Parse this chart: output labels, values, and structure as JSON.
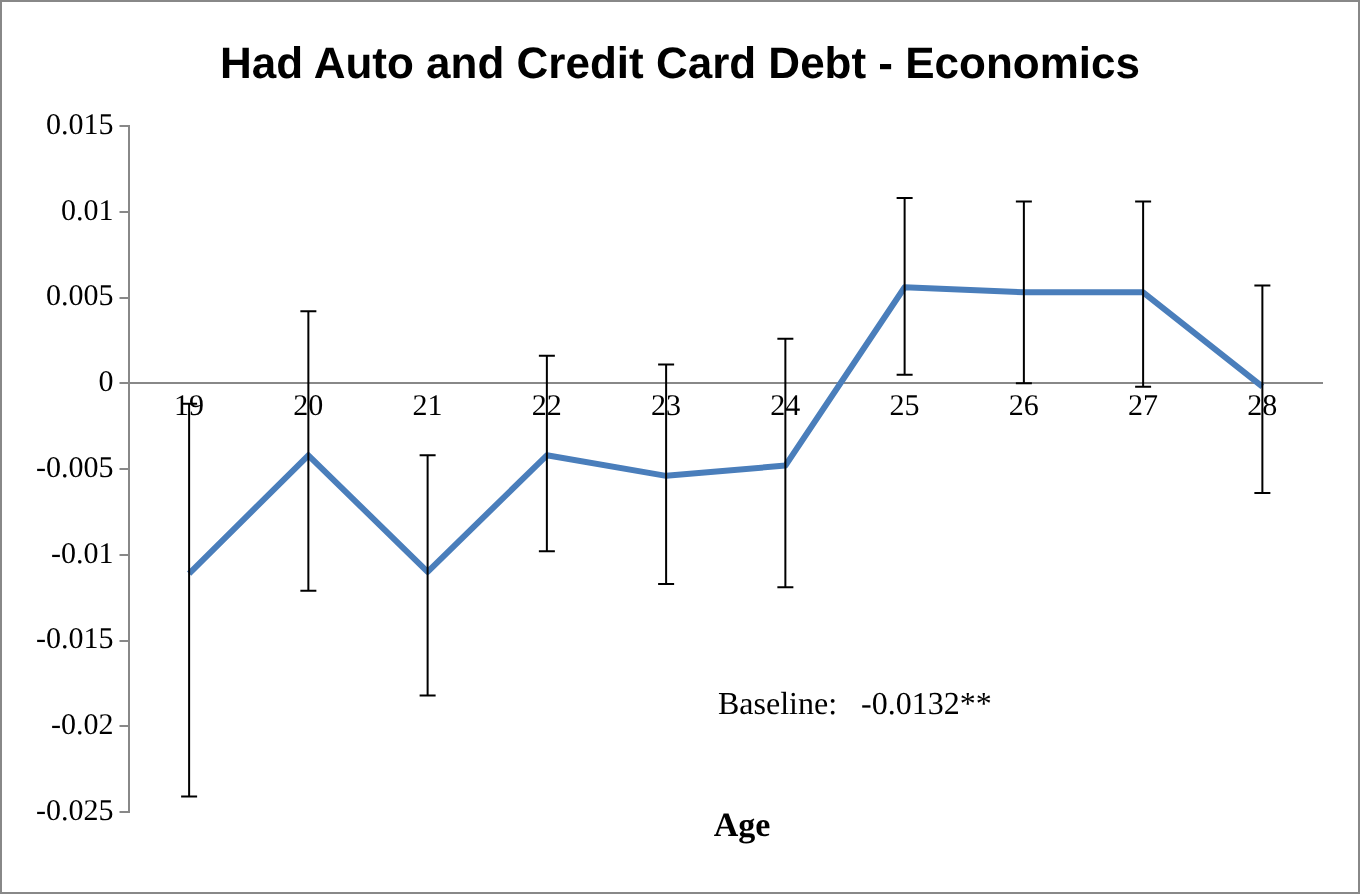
{
  "chart_data": {
    "type": "line",
    "title": "Had Auto and Credit Card Debt - Economics",
    "xlabel": "Age",
    "categories": [
      "19",
      "20",
      "21",
      "22",
      "23",
      "24",
      "25",
      "26",
      "27",
      "28"
    ],
    "series": [
      {
        "color": "#4a7ebb",
        "values": [
          -0.0111,
          -0.0042,
          -0.011,
          -0.0042,
          -0.0054,
          -0.0048,
          0.0056,
          0.0053,
          0.0053,
          -0.0002
        ],
        "errors": [
          [
            -0.0241,
            -0.0012
          ],
          [
            -0.0121,
            0.0042
          ],
          [
            -0.0182,
            -0.0042
          ],
          [
            -0.0098,
            0.0016
          ],
          [
            -0.0117,
            0.0011
          ],
          [
            -0.0119,
            0.0026
          ],
          [
            0.0005,
            0.0108
          ],
          [
            0.0,
            0.0106
          ],
          [
            -0.0002,
            0.0106
          ],
          [
            -0.0064,
            0.0057
          ]
        ]
      }
    ],
    "ylim": [
      -0.025,
      0.015
    ],
    "yticks": [
      -0.025,
      -0.02,
      -0.015,
      -0.01,
      -0.005,
      0,
      0.005,
      0.01,
      0.015
    ],
    "grid": false,
    "legend": false,
    "marker": "none",
    "line_style": "solid",
    "annotations": [
      "Baseline:   -0.0132**"
    ]
  }
}
